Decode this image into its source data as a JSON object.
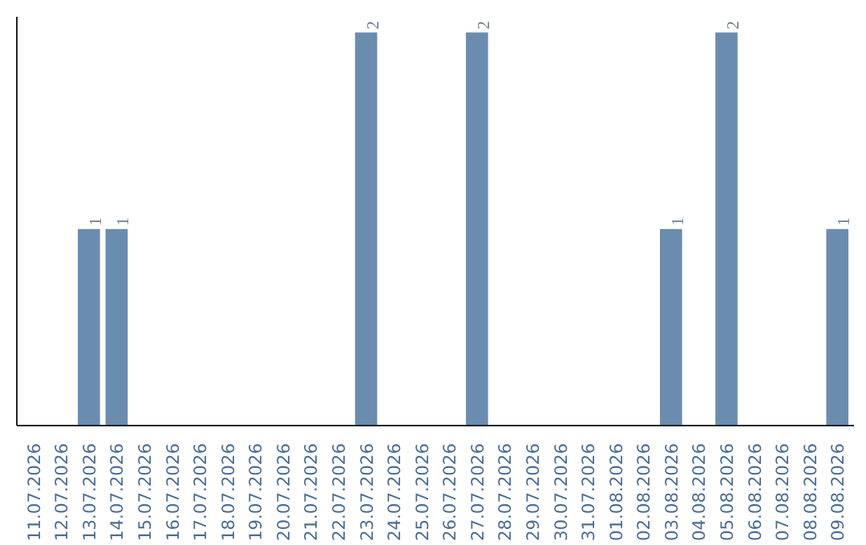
{
  "chart_data": {
    "type": "bar",
    "categories": [
      "11.07.2026",
      "12.07.2026",
      "13.07.2026",
      "14.07.2026",
      "15.07.2026",
      "16.07.2026",
      "17.07.2026",
      "18.07.2026",
      "19.07.2026",
      "20.07.2026",
      "21.07.2026",
      "22.07.2026",
      "23.07.2026",
      "24.07.2026",
      "25.07.2026",
      "26.07.2026",
      "27.07.2026",
      "28.07.2026",
      "29.07.2026",
      "30.07.2026",
      "31.07.2026",
      "01.08.2026",
      "02.08.2026",
      "03.08.2026",
      "04.08.2026",
      "05.08.2026",
      "06.08.2026",
      "07.08.2026",
      "08.08.2026",
      "09.08.2026"
    ],
    "values": [
      0,
      0,
      1,
      1,
      0,
      0,
      0,
      0,
      0,
      0,
      0,
      0,
      2,
      0,
      0,
      0,
      2,
      0,
      0,
      0,
      0,
      0,
      0,
      1,
      0,
      2,
      0,
      0,
      0,
      1
    ],
    "value_labels": [
      null,
      null,
      "1",
      "1",
      null,
      null,
      null,
      null,
      null,
      null,
      null,
      null,
      "2",
      null,
      null,
      null,
      "2",
      null,
      null,
      null,
      null,
      null,
      null,
      "1",
      null,
      "2",
      null,
      null,
      null,
      "1"
    ],
    "color": "#6a8caf",
    "tick_labels": "x",
    "grid": false
  }
}
